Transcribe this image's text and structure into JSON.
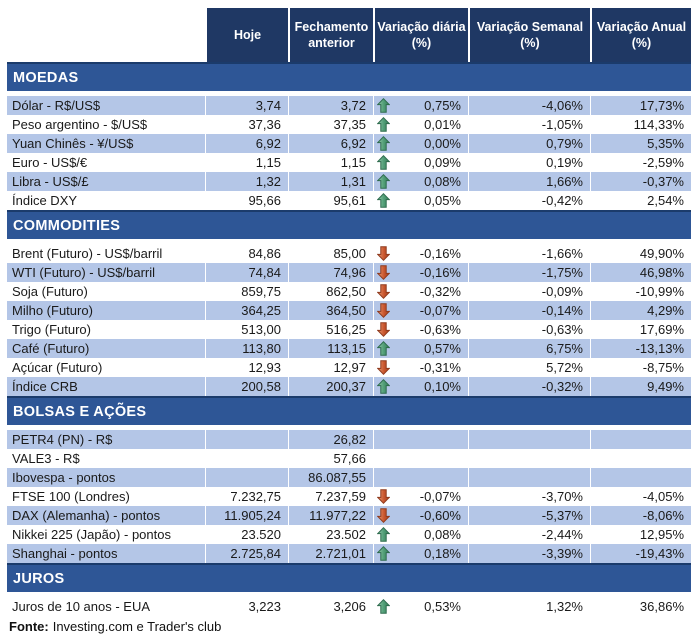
{
  "colors": {
    "header_bg": "#1F3864",
    "section_band_bg": "#2E5696",
    "section_band_border": "#1B3B6B",
    "row_shade": "#B4C6E7",
    "arrow_up": "#4E9C74",
    "arrow_down": "#C9552D",
    "text": "#1A1A1A",
    "header_text": "#FFFFFF"
  },
  "chart_data": {
    "type": "table",
    "columns": [
      "Hoje",
      "Fechamento anterior",
      "Variação diária (%)",
      "Variação Semanal (%)",
      "Variação Anual (%)"
    ],
    "sections": [
      {
        "title": "MOEDAS",
        "rows": [
          {
            "label": "Dólar - R$/US$",
            "today": "3,74",
            "prev_close": "3,72",
            "trend": "up",
            "daily": "0,75%",
            "weekly": "-4,06%",
            "annual": "17,73%",
            "shaded": true
          },
          {
            "label": "Peso argentino - $/US$",
            "today": "37,36",
            "prev_close": "37,35",
            "trend": "up",
            "daily": "0,01%",
            "weekly": "-1,05%",
            "annual": "114,33%",
            "shaded": false
          },
          {
            "label": "Yuan Chinês - ¥/US$",
            "today": "6,92",
            "prev_close": "6,92",
            "trend": "up",
            "daily": "0,00%",
            "weekly": "0,79%",
            "annual": "5,35%",
            "shaded": true
          },
          {
            "label": "Euro - US$/€",
            "today": "1,15",
            "prev_close": "1,15",
            "trend": "up",
            "daily": "0,09%",
            "weekly": "0,19%",
            "annual": "-2,59%",
            "shaded": false
          },
          {
            "label": "Libra - US$/£",
            "today": "1,32",
            "prev_close": "1,31",
            "trend": "up",
            "daily": "0,08%",
            "weekly": "1,66%",
            "annual": "-0,37%",
            "shaded": true
          },
          {
            "label": "Índice DXY",
            "today": "95,66",
            "prev_close": "95,61",
            "trend": "up",
            "daily": "0,05%",
            "weekly": "-0,42%",
            "annual": "2,54%",
            "shaded": false
          }
        ]
      },
      {
        "title": "COMMODITIES",
        "rows": [
          {
            "label": "Brent (Futuro) - US$/barril",
            "today": "84,86",
            "prev_close": "85,00",
            "trend": "down",
            "daily": "-0,16%",
            "weekly": "-1,66%",
            "annual": "49,90%",
            "shaded": false
          },
          {
            "label": "WTI (Futuro) - US$/barril",
            "today": "74,84",
            "prev_close": "74,96",
            "trend": "down",
            "daily": "-0,16%",
            "weekly": "-1,75%",
            "annual": "46,98%",
            "shaded": true
          },
          {
            "label": "Soja (Futuro)",
            "today": "859,75",
            "prev_close": "862,50",
            "trend": "down",
            "daily": "-0,32%",
            "weekly": "-0,09%",
            "annual": "-10,99%",
            "shaded": false
          },
          {
            "label": "Milho (Futuro)",
            "today": "364,25",
            "prev_close": "364,50",
            "trend": "down",
            "daily": "-0,07%",
            "weekly": "-0,14%",
            "annual": "4,29%",
            "shaded": true
          },
          {
            "label": "Trigo (Futuro)",
            "today": "513,00",
            "prev_close": "516,25",
            "trend": "down",
            "daily": "-0,63%",
            "weekly": "-0,63%",
            "annual": "17,69%",
            "shaded": false
          },
          {
            "label": "Café (Futuro)",
            "today": "113,80",
            "prev_close": "113,15",
            "trend": "up",
            "daily": "0,57%",
            "weekly": "6,75%",
            "annual": "-13,13%",
            "shaded": true
          },
          {
            "label": "Açúcar (Futuro)",
            "today": "12,93",
            "prev_close": "12,97",
            "trend": "down",
            "daily": "-0,31%",
            "weekly": "5,72%",
            "annual": "-8,75%",
            "shaded": false
          },
          {
            "label": "Índice CRB",
            "today": "200,58",
            "prev_close": "200,37",
            "trend": "up",
            "daily": "0,10%",
            "weekly": "-0,32%",
            "annual": "9,49%",
            "shaded": true
          }
        ]
      },
      {
        "title": "BOLSAS E AÇÕES",
        "rows": [
          {
            "label": "PETR4 (PN) - R$",
            "today": "",
            "prev_close": "26,82",
            "trend": "",
            "daily": "",
            "weekly": "",
            "annual": "",
            "shaded": true
          },
          {
            "label": "VALE3 - R$",
            "today": "",
            "prev_close": "57,66",
            "trend": "",
            "daily": "",
            "weekly": "",
            "annual": "",
            "shaded": false
          },
          {
            "label": "Ibovespa - pontos",
            "today": "",
            "prev_close": "86.087,55",
            "trend": "",
            "daily": "",
            "weekly": "",
            "annual": "",
            "shaded": true
          },
          {
            "label": "FTSE 100 (Londres)",
            "today": "7.232,75",
            "prev_close": "7.237,59",
            "trend": "down",
            "daily": "-0,07%",
            "weekly": "-3,70%",
            "annual": "-4,05%",
            "shaded": false
          },
          {
            "label": "DAX (Alemanha) - pontos",
            "today": "11.905,24",
            "prev_close": "11.977,22",
            "trend": "down",
            "daily": "-0,60%",
            "weekly": "-5,37%",
            "annual": "-8,06%",
            "shaded": true
          },
          {
            "label": "Nikkei 225 (Japão) - pontos",
            "today": "23.520",
            "prev_close": "23.502",
            "trend": "up",
            "daily": "0,08%",
            "weekly": "-2,44%",
            "annual": "12,95%",
            "shaded": false
          },
          {
            "label": "Shanghai - pontos",
            "today": "2.725,84",
            "prev_close": "2.721,01",
            "trend": "up",
            "daily": "0,18%",
            "weekly": "-3,39%",
            "annual": "-19,43%",
            "shaded": true
          }
        ]
      },
      {
        "title": "JUROS",
        "rows": [
          {
            "label": "Juros de 10 anos - EUA",
            "today": "3,223",
            "prev_close": "3,206",
            "trend": "up",
            "daily": "0,53%",
            "weekly": "1,32%",
            "annual": "36,86%",
            "shaded": false
          }
        ]
      }
    ]
  },
  "footer": {
    "label": "Fonte:",
    "text": "Investing.com e Trader's club"
  }
}
